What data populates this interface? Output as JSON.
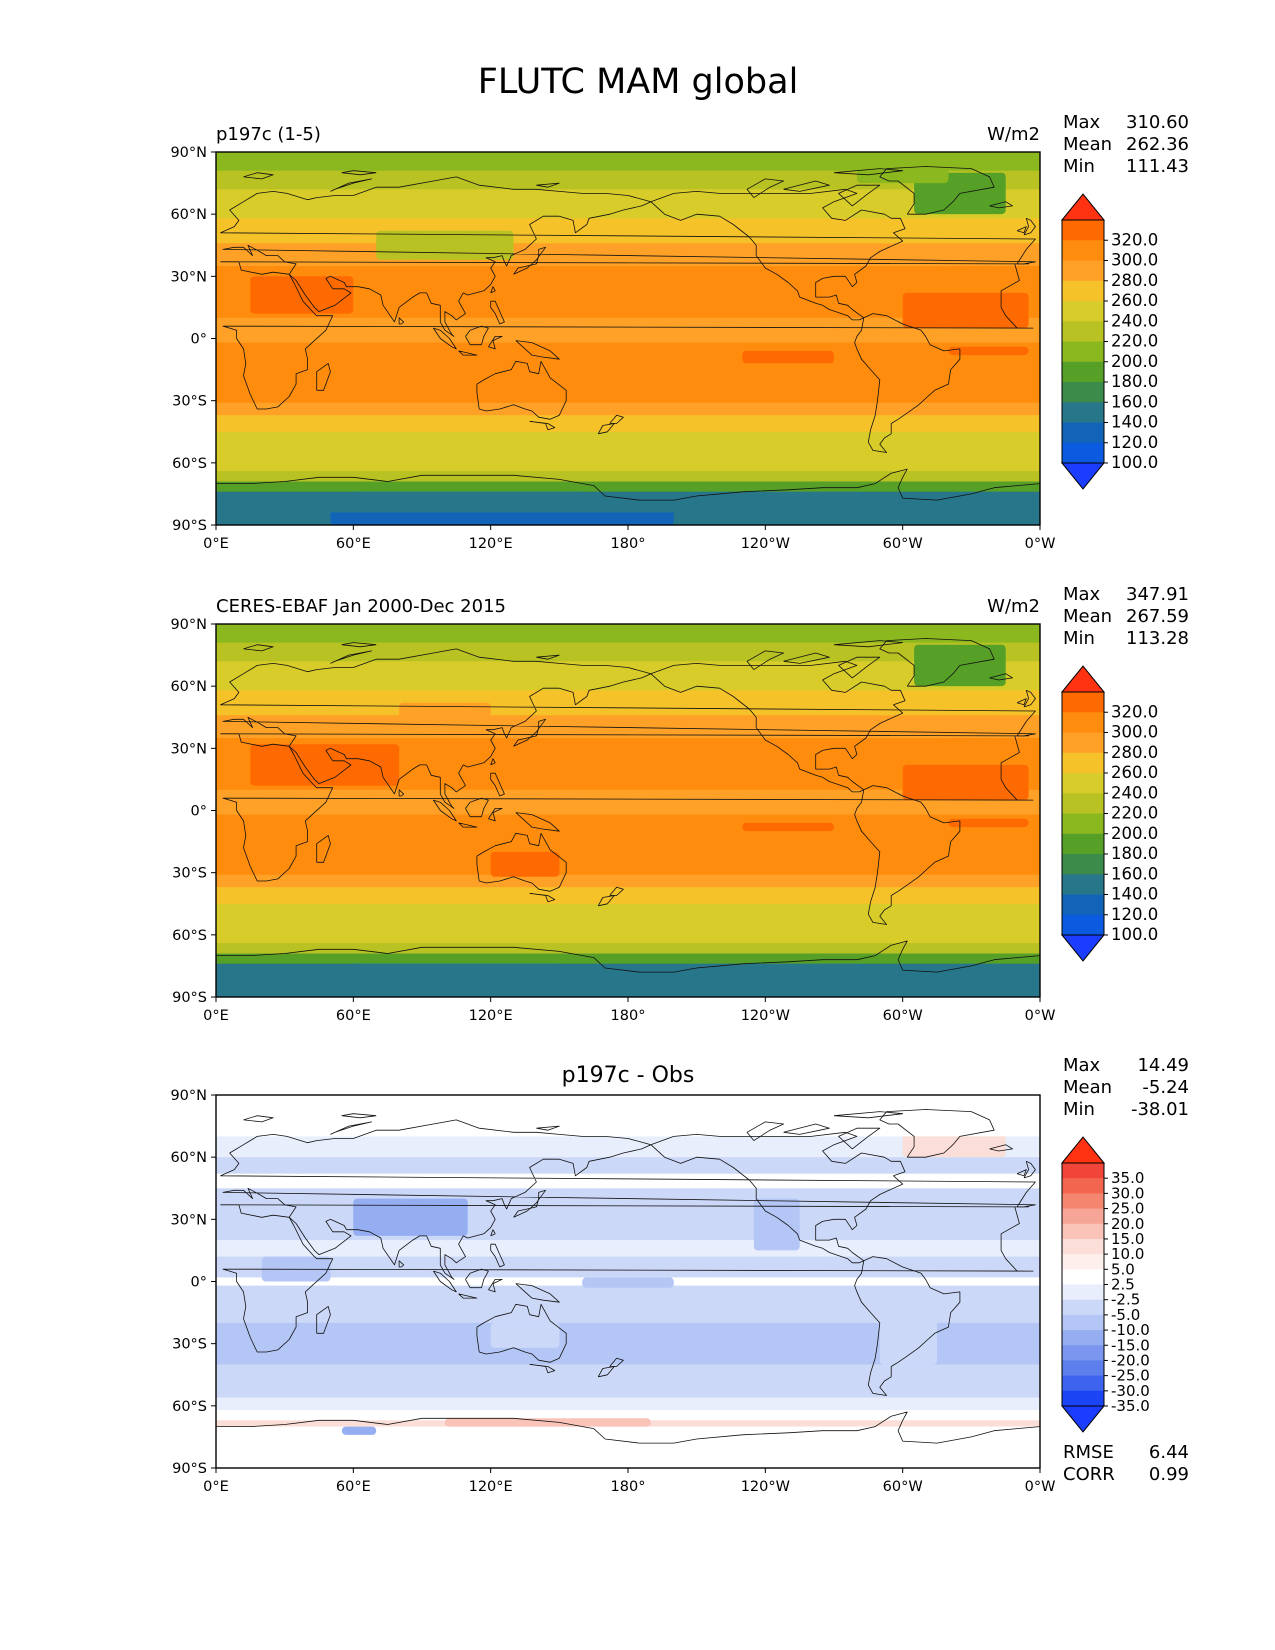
{
  "figure": {
    "title": "FLUTC MAM global"
  },
  "lat_ticks": [
    "90°N",
    "60°N",
    "30°N",
    "0°",
    "30°S",
    "60°S",
    "90°S"
  ],
  "lon_ticks": [
    "0°E",
    "60°E",
    "120°E",
    "180°",
    "120°W",
    "60°W",
    "0°W"
  ],
  "panels": [
    {
      "id": "model",
      "left_title": "p197c (1-5)",
      "center_title": "",
      "units": "W/m2",
      "stats": [
        {
          "label": "Max",
          "value": "310.60"
        },
        {
          "label": "Mean",
          "value": "262.36"
        },
        {
          "label": "Min",
          "value": "111.43"
        }
      ],
      "field": {
        "min": 111.43,
        "mean": 262.36,
        "max": 310.6
      },
      "colorbar": {
        "labels": [
          "320.0",
          "300.0",
          "280.0",
          "260.0",
          "240.0",
          "220.0",
          "200.0",
          "180.0",
          "160.0",
          "140.0",
          "120.0",
          "100.0"
        ],
        "colors": [
          "#ff3311",
          "#ff6a00",
          "#ff8c0d",
          "#ffa126",
          "#f6c22a",
          "#d7cc2a",
          "#b8c223",
          "#8bb81f",
          "#56a028",
          "#3d8b4a",
          "#27768a",
          "#1264b9",
          "#0b5ae0",
          "#1a3dff"
        ]
      },
      "extra": []
    },
    {
      "id": "obs",
      "left_title": "CERES-EBAF Jan 2000-Dec 2015",
      "center_title": "",
      "units": "W/m2",
      "stats": [
        {
          "label": "Max",
          "value": "347.91"
        },
        {
          "label": "Mean",
          "value": "267.59"
        },
        {
          "label": "Min",
          "value": "113.28"
        }
      ],
      "field": {
        "min": 113.28,
        "mean": 267.59,
        "max": 347.91
      },
      "colorbar": {
        "labels": [
          "320.0",
          "300.0",
          "280.0",
          "260.0",
          "240.0",
          "220.0",
          "200.0",
          "180.0",
          "160.0",
          "140.0",
          "120.0",
          "100.0"
        ],
        "colors": [
          "#ff3311",
          "#ff6a00",
          "#ff8c0d",
          "#ffa126",
          "#f6c22a",
          "#d7cc2a",
          "#b8c223",
          "#8bb81f",
          "#56a028",
          "#3d8b4a",
          "#27768a",
          "#1264b9",
          "#0b5ae0",
          "#1a3dff"
        ]
      },
      "extra": []
    },
    {
      "id": "diff",
      "left_title": "",
      "center_title": "p197c - Obs",
      "units": "",
      "stats": [
        {
          "label": "Max",
          "value": "14.49"
        },
        {
          "label": "Mean",
          "value": "-5.24"
        },
        {
          "label": "Min",
          "value": "-38.01"
        }
      ],
      "field": {
        "min": -38.01,
        "mean": -5.24,
        "max": 14.49
      },
      "colorbar": {
        "labels": [
          "35.0",
          "30.0",
          "25.0",
          "20.0",
          "15.0",
          "10.0",
          "5.0",
          "2.5",
          "-2.5",
          "-5.0",
          "-10.0",
          "-15.0",
          "-20.0",
          "-25.0",
          "-30.0",
          "-35.0"
        ],
        "colors": [
          "#ff3311",
          "#f2453a",
          "#f26650",
          "#f48670",
          "#f7a596",
          "#f9c3b8",
          "#fbded7",
          "#fdf0ec",
          "#ffffff",
          "#e8eefc",
          "#ccd8f8",
          "#b3c6f5",
          "#95aef2",
          "#7a96ef",
          "#5d7eed",
          "#3e63ee",
          "#1b44f5",
          "#1a3dff"
        ]
      },
      "extra": [
        {
          "label": "RMSE",
          "value": "6.44"
        },
        {
          "label": "CORR",
          "value": "0.99"
        }
      ]
    }
  ]
}
